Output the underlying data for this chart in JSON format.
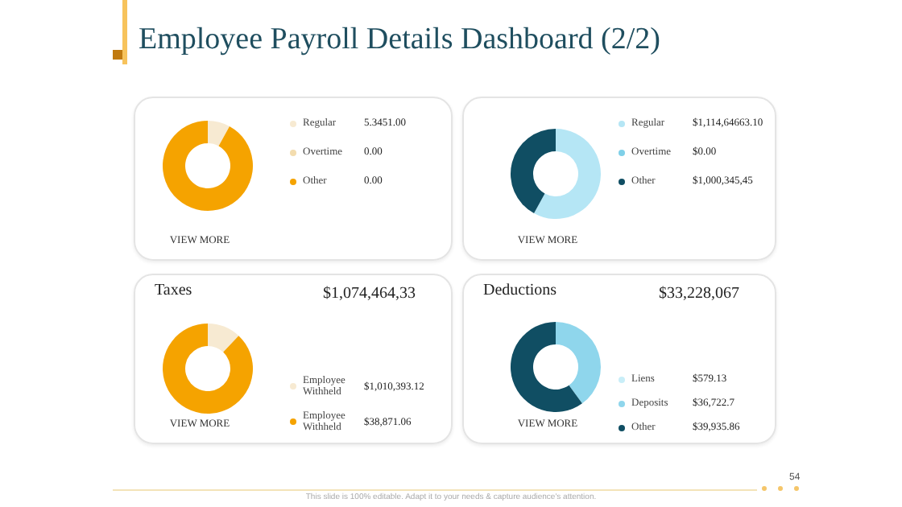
{
  "chart_data": [
    {
      "type": "donut",
      "categories": [
        "Regular",
        "Overtime",
        "Other"
      ],
      "values": [
        8,
        0,
        92
      ],
      "colors": [
        "#f7ead2",
        "#f3dcae",
        "#f5a300"
      ],
      "legend": "right",
      "annotations": [
        "VIEW MORE",
        "5.3451.00",
        "0.00",
        "0.00"
      ]
    },
    {
      "type": "donut",
      "categories": [
        "Regular",
        "Overtime",
        "Other"
      ],
      "values": [
        58,
        0,
        42
      ],
      "colors": [
        "#b5e6f5",
        "#7fd0e8",
        "#104e63"
      ],
      "legend": "right",
      "annotations": [
        "VIEW MORE",
        "$1,114,64663.10",
        "$0.00",
        "$1,000,345,45"
      ]
    },
    {
      "type": "donut",
      "title": "Taxes",
      "subtitle": "$1,074,464,33",
      "categories": [
        "Employee Withheld",
        "Employee Withheld"
      ],
      "values": [
        12,
        88
      ],
      "colors": [
        "#f7ead2",
        "#f5a300"
      ],
      "legend": "bottom right",
      "annotations": [
        "VIEW MORE",
        "$1,010,393.12",
        "$38,871.06"
      ]
    },
    {
      "type": "donut",
      "title": "Deductions",
      "subtitle": "$33,228,067",
      "categories": [
        "Liens",
        "Deposits",
        "Other"
      ],
      "values": [
        0,
        40,
        60
      ],
      "colors": [
        "#c9eef8",
        "#8fd6ec",
        "#104e63"
      ],
      "legend": "bottom right",
      "annotations": [
        "VIEW MORE",
        "$579.13",
        "$36,722.7",
        "$39,935.86"
      ]
    },
    {
      "type": "other",
      "title": "Employee Payroll Details Dashboard (2/2)",
      "annotations": [
        "This slide is 100% editable. Adapt it to your needs & capture audience's attention.",
        "54"
      ]
    }
  ]
}
